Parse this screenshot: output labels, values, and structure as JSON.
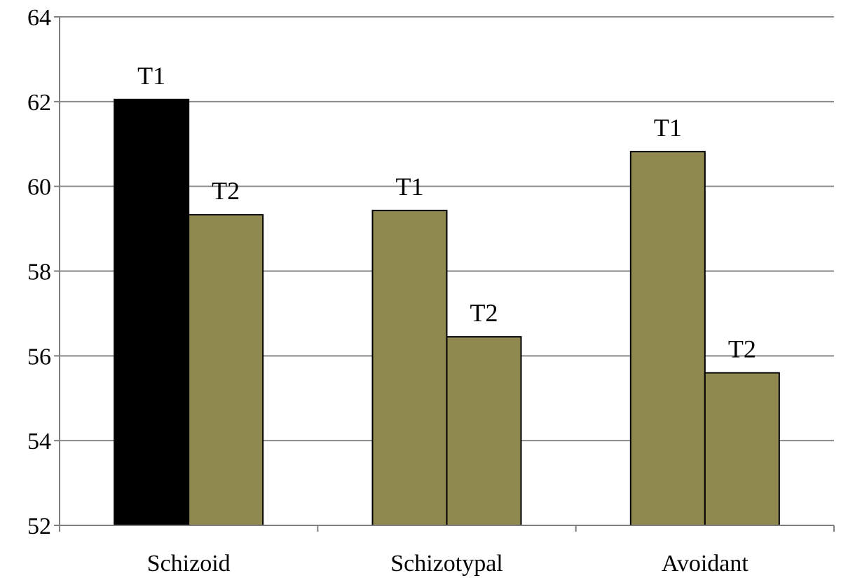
{
  "chart_data": {
    "type": "bar",
    "categories": [
      "Schizoid",
      "Schizotypal",
      "Avoidant"
    ],
    "series": [
      {
        "values": [
          62.05,
          59.43,
          60.82
        ]
      },
      {
        "values": [
          59.33,
          56.45,
          55.6
        ]
      }
    ],
    "bar_labels": [
      [
        "T1",
        "T2"
      ],
      [
        "T1",
        "T2"
      ],
      [
        "T1",
        "T2"
      ]
    ],
    "ylim": [
      52,
      64
    ],
    "yticks": [
      "52",
      "54",
      "56",
      "58",
      "60",
      "62",
      "64"
    ],
    "ytick_values": [
      52,
      54,
      56,
      58,
      60,
      62,
      64
    ],
    "xlabel": "",
    "ylabel": "",
    "title": "",
    "grid": true,
    "legend": "none",
    "bar_fills": [
      [
        "#000000",
        "#8f884f"
      ],
      [
        "#8f884f",
        "#8f884f"
      ],
      [
        "#8f884f",
        "#8f884f"
      ]
    ],
    "colors": {
      "gridline": "#8a8a8a",
      "axis": "#7f7f7f",
      "bar_border": "#000000"
    }
  }
}
